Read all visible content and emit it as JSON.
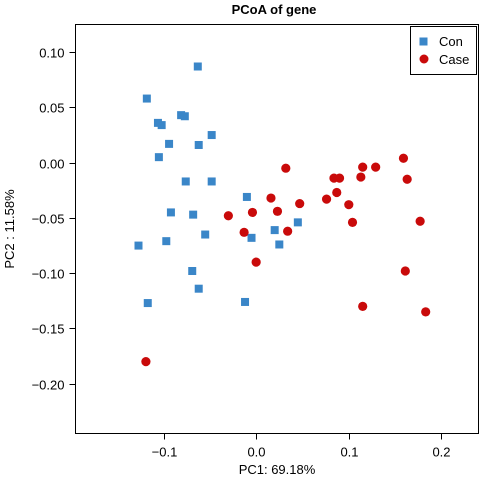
{
  "chart_data": {
    "type": "scatter",
    "title": "PCoA of gene",
    "xlabel": "PC1: 69.18%",
    "ylabel": "PC2 :  11.58%",
    "xlim": [
      -0.195,
      0.24
    ],
    "ylim": [
      -0.245,
      0.125
    ],
    "x_ticks": [
      -0.1,
      0.0,
      0.1,
      0.2
    ],
    "x_tick_labels": [
      "−0.1",
      "0.0",
      "0.1",
      "0.2"
    ],
    "y_ticks": [
      0.1,
      0.05,
      0.0,
      -0.05,
      -0.1,
      -0.15,
      -0.2
    ],
    "y_tick_labels": [
      "0.10",
      "0.05",
      "0.00",
      "−0.05",
      "−0.10",
      "−0.15",
      "−0.20"
    ],
    "grid": false,
    "legend_position": "top-right",
    "series": [
      {
        "name": "Con",
        "marker": "square",
        "color": "#3a86c8",
        "points": [
          [
            -0.063,
            0.087
          ],
          [
            -0.118,
            0.058
          ],
          [
            -0.081,
            0.043
          ],
          [
            -0.077,
            0.042
          ],
          [
            -0.106,
            0.036
          ],
          [
            -0.102,
            0.034
          ],
          [
            -0.048,
            0.025
          ],
          [
            -0.094,
            0.017
          ],
          [
            -0.062,
            0.016
          ],
          [
            -0.105,
            0.005
          ],
          [
            -0.076,
            -0.017
          ],
          [
            -0.048,
            -0.017
          ],
          [
            -0.01,
            -0.031
          ],
          [
            -0.092,
            -0.045
          ],
          [
            -0.068,
            -0.047
          ],
          [
            0.045,
            -0.054
          ],
          [
            0.02,
            -0.061
          ],
          [
            -0.055,
            -0.065
          ],
          [
            -0.005,
            -0.068
          ],
          [
            -0.097,
            -0.071
          ],
          [
            0.025,
            -0.074
          ],
          [
            -0.127,
            -0.075
          ],
          [
            -0.069,
            -0.098
          ],
          [
            -0.062,
            -0.114
          ],
          [
            -0.012,
            -0.126
          ],
          [
            -0.117,
            -0.127
          ]
        ]
      },
      {
        "name": "Case",
        "marker": "circle",
        "color": "#c90a0a",
        "points": [
          [
            0.032,
            -0.005
          ],
          [
            0.115,
            -0.004
          ],
          [
            0.129,
            -0.004
          ],
          [
            0.159,
            0.004
          ],
          [
            0.163,
            -0.015
          ],
          [
            0.084,
            -0.014
          ],
          [
            0.09,
            -0.014
          ],
          [
            0.113,
            -0.013
          ],
          [
            0.087,
            -0.027
          ],
          [
            0.016,
            -0.032
          ],
          [
            0.076,
            -0.033
          ],
          [
            0.1,
            -0.038
          ],
          [
            0.047,
            -0.037
          ],
          [
            -0.004,
            -0.045
          ],
          [
            -0.03,
            -0.048
          ],
          [
            0.023,
            -0.044
          ],
          [
            0.104,
            -0.054
          ],
          [
            0.177,
            -0.053
          ],
          [
            0.034,
            -0.062
          ],
          [
            -0.013,
            -0.063
          ],
          [
            0.0,
            -0.09
          ],
          [
            0.161,
            -0.098
          ],
          [
            0.115,
            -0.13
          ],
          [
            0.183,
            -0.135
          ],
          [
            -0.119,
            -0.18
          ]
        ]
      }
    ]
  }
}
